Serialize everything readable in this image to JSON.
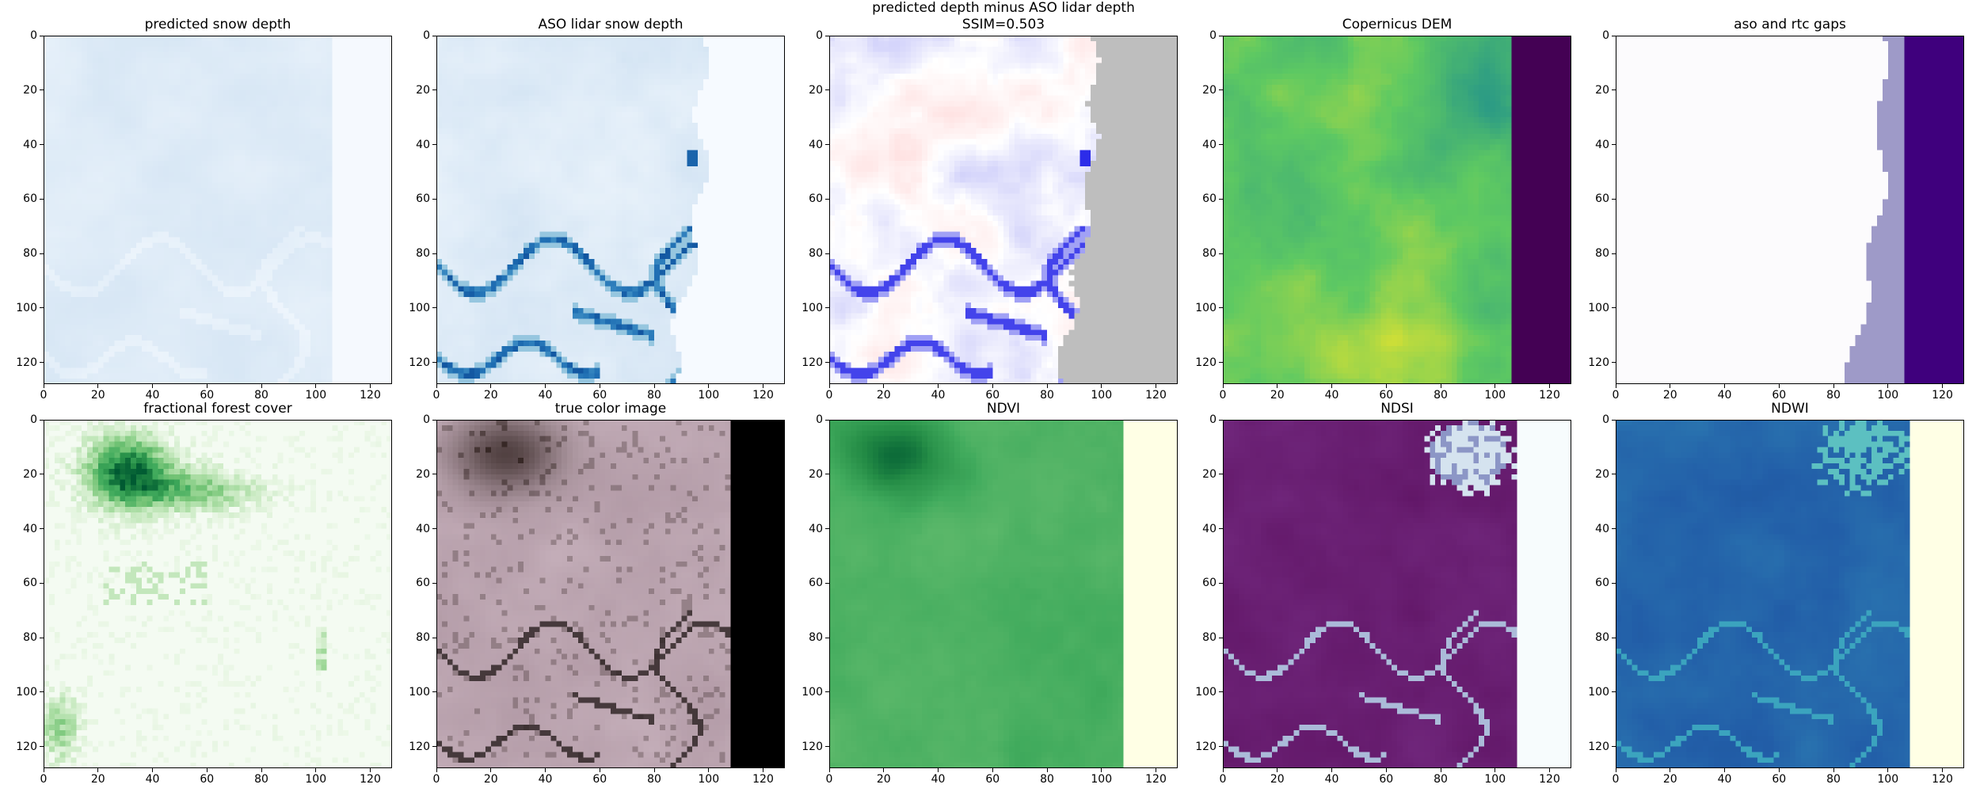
{
  "figure": {
    "panels": [
      {
        "id": "predicted-snow-depth",
        "title_lines": [
          "predicted snow depth"
        ],
        "render": "blues_light",
        "gap": "vertical-edge-106"
      },
      {
        "id": "aso-lidar-snow-depth",
        "title_lines": [
          "ASO lidar snow depth"
        ],
        "render": "blues_detail"
      },
      {
        "id": "predicted-minus-aso",
        "title_lines": [
          "predicted depth minus ASO lidar depth",
          "SSIM=0.503"
        ],
        "render": "diff_bwr",
        "gap": "gray-right"
      },
      {
        "id": "copernicus-dem",
        "title_lines": [
          "Copernicus DEM"
        ],
        "render": "dem_viridis",
        "gap": "purple-right"
      },
      {
        "id": "aso-and-rtc-gaps",
        "title_lines": [
          "aso and rtc gaps"
        ],
        "render": "gaps_purples"
      },
      {
        "id": "fractional-forest-cover",
        "title_lines": [
          "fractional forest cover"
        ],
        "render": "forest_greens"
      },
      {
        "id": "true-color-image",
        "title_lines": [
          "true color image"
        ],
        "render": "truecolor",
        "gap": "black-right"
      },
      {
        "id": "ndvi",
        "title_lines": [
          "NDVI"
        ],
        "render": "ndvi_greens",
        "gap": "ivory-right"
      },
      {
        "id": "ndsi",
        "title_lines": [
          "NDSI"
        ],
        "render": "ndsi_bupu",
        "gap": "paleblue-right"
      },
      {
        "id": "ndwi",
        "title_lines": [
          "NDWI"
        ],
        "render": "ndwi_ylgnbu",
        "gap": "ivory-right"
      }
    ],
    "axes": {
      "x_ticks": [
        "0",
        "20",
        "40",
        "60",
        "80",
        "100",
        "120"
      ],
      "y_ticks": [
        "0",
        "20",
        "40",
        "60",
        "80",
        "100",
        "120"
      ],
      "extent": [
        0,
        128
      ]
    },
    "colors": {
      "gray_gap": "#bebebe",
      "purple_gap": "#440154",
      "black_gap": "#000000",
      "ivory_gap": "#ffffe5",
      "paleblue_gap": "#f7fcfd",
      "gaps_bg": "#fcfbfd",
      "gaps_mid": "#9e9ac8",
      "gaps_dark": "#3f007d"
    }
  },
  "chart_data": [
    {
      "type": "heatmap",
      "title": "predicted snow depth",
      "xlim": [
        0,
        128
      ],
      "ylim": [
        128,
        0
      ],
      "colormap": "Blues",
      "nodata_region": "columns 106-128"
    },
    {
      "type": "heatmap",
      "title": "ASO lidar snow depth",
      "xlim": [
        0,
        128
      ],
      "ylim": [
        128,
        0
      ],
      "colormap": "Blues"
    },
    {
      "type": "heatmap",
      "title": "predicted depth minus ASO lidar depth",
      "subtitle": "SSIM=0.503",
      "ssim": 0.503,
      "xlim": [
        0,
        128
      ],
      "ylim": [
        128,
        0
      ],
      "colormap": "bwr",
      "nodata_region": "right edge, from column ~96 at top to ~84 at bottom"
    },
    {
      "type": "heatmap",
      "title": "Copernicus DEM",
      "xlim": [
        0,
        128
      ],
      "ylim": [
        128,
        0
      ],
      "colormap": "viridis",
      "nodata_region": "columns 106-128"
    },
    {
      "type": "heatmap",
      "title": "aso and rtc gaps",
      "xlim": [
        0,
        128
      ],
      "ylim": [
        128,
        0
      ],
      "colormap": "Purples",
      "classes": [
        "no gap",
        "aso gap",
        "rtc gap"
      ]
    },
    {
      "type": "heatmap",
      "title": "fractional forest cover",
      "xlim": [
        0,
        128
      ],
      "ylim": [
        128,
        0
      ],
      "colormap": "Greens"
    },
    {
      "type": "heatmap",
      "title": "true color image",
      "xlim": [
        0,
        128
      ],
      "ylim": [
        128,
        0
      ],
      "nodata_region": "columns 107-128"
    },
    {
      "type": "heatmap",
      "title": "NDVI",
      "xlim": [
        0,
        128
      ],
      "ylim": [
        128,
        0
      ],
      "colormap": "Greens",
      "nodata_region": "columns 107-128"
    },
    {
      "type": "heatmap",
      "title": "NDSI",
      "xlim": [
        0,
        128
      ],
      "ylim": [
        128,
        0
      ],
      "colormap": "BuPu",
      "nodata_region": "columns 107-128"
    },
    {
      "type": "heatmap",
      "title": "NDWI",
      "xlim": [
        0,
        128
      ],
      "ylim": [
        128,
        0
      ],
      "colormap": "YlGnBu",
      "nodata_region": "columns 107-128"
    }
  ]
}
